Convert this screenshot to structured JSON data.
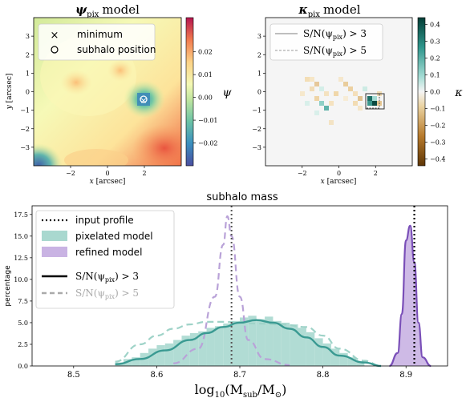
{
  "psi_panel": {
    "title": "ψ",
    "title_sub": "pix",
    "title_rest": "model",
    "xlabel_var": "x",
    "xlabel_unit": "[arcsec]",
    "ylabel_var": "y",
    "ylabel_unit": "[arcsec]",
    "xticks": [
      "−2",
      "0",
      "2"
    ],
    "yticks": [
      "3",
      "2",
      "1",
      "0",
      "−1",
      "−2",
      "−3"
    ],
    "legend": [
      {
        "marker": "×",
        "label": "minimum"
      },
      {
        "marker": "○",
        "label": "subhalo position"
      }
    ],
    "colorbar_label": "ψ",
    "colorbar_ticks": [
      "0.02",
      "0.01",
      "0.00",
      "−0.01",
      "−0.02"
    ]
  },
  "kappa_panel": {
    "title": "κ",
    "title_sub": "pix",
    "title_rest": "model",
    "xlabel_var": "x",
    "xlabel_unit": "[arcsec]",
    "yticks": [
      "3",
      "2",
      "1",
      "0",
      "−1",
      "−2",
      "−3"
    ],
    "xticks": [
      "−2",
      "0",
      "2"
    ],
    "legend": [
      {
        "style": "solid",
        "label": "S/N(ψ"
      },
      {
        "style": "dashed",
        "label": "S/N(ψ"
      }
    ],
    "legend_sub": "pix",
    "legend_gt": [
      ") > 3",
      ") > 5"
    ],
    "colorbar_label": "κ",
    "colorbar_ticks": [
      "0.4",
      "0.3",
      "0.2",
      "0.1",
      "0.0",
      "−0.1",
      "−0.2",
      "−0.3",
      "−0.4"
    ]
  },
  "colors": {
    "teal": "#3a9a92",
    "teal_fill": "#a9d8cf",
    "purple": "#7a4fb8",
    "purple_fill": "#c9b3e3",
    "purple_dash": "#b9a2d8",
    "teal_dash": "#9fd3c8"
  },
  "chart_data": {
    "type": "area",
    "title": "subhalo mass",
    "xlabel": "log10(Msub/M⊙)",
    "xlabel_display": "log",
    "xlabel_sub10": "10",
    "xlabel_body": "(M",
    "xlabel_subsub": "sub",
    "xlabel_mid": "/M",
    "xlabel_sun": "⊙",
    "xlabel_end": ")",
    "ylabel": "percentage",
    "xlim": [
      8.45,
      8.95
    ],
    "ylim": [
      0,
      18.5
    ],
    "xticks": [
      8.5,
      8.6,
      8.7,
      8.8,
      8.9
    ],
    "xtick_labels": [
      "8.5",
      "8.6",
      "8.7",
      "8.8",
      "8.9"
    ],
    "yticks": [
      0,
      2.5,
      5.0,
      7.5,
      10.0,
      12.5,
      15.0,
      17.5
    ],
    "ytick_labels": [
      "0.0",
      "2.5",
      "5.0",
      "7.5",
      "10.0",
      "12.5",
      "15.0",
      "17.5"
    ],
    "input_value": 8.91,
    "legend": [
      {
        "key": "input",
        "label": "input profile"
      },
      {
        "key": "pix",
        "label": "pixelated model"
      },
      {
        "key": "ref",
        "label": "refined model"
      },
      {
        "key": "sn3",
        "label": "S/N(ψ",
        "sub": "pix",
        "tail": ") > 3"
      },
      {
        "key": "sn5",
        "label": "S/N(ψ",
        "sub": "pix",
        "tail": ") > 5"
      }
    ],
    "series": [
      {
        "name": "pixelated model",
        "style": "hist+solid",
        "x": [
          8.55,
          8.58,
          8.61,
          8.64,
          8.66,
          8.68,
          8.7,
          8.72,
          8.74,
          8.76,
          8.78,
          8.8,
          8.82,
          8.85,
          8.87
        ],
        "values": [
          0.2,
          0.8,
          1.8,
          3.0,
          3.8,
          4.5,
          5.0,
          5.3,
          5.0,
          4.3,
          3.3,
          2.2,
          1.2,
          0.4,
          0.0
        ]
      },
      {
        "name": "pixelated model S/N>5",
        "style": "dashed",
        "x": [
          8.55,
          8.58,
          8.6,
          8.62,
          8.64,
          8.66,
          8.68,
          8.7,
          8.72,
          8.75,
          8.78,
          8.8,
          8.82,
          8.85,
          8.87
        ],
        "values": [
          0.5,
          2.5,
          3.5,
          4.3,
          4.8,
          5.1,
          5.1,
          5.0,
          4.9,
          4.8,
          4.5,
          3.5,
          2.0,
          0.6,
          0.0
        ]
      },
      {
        "name": "refined model",
        "style": "fill+solid",
        "x": [
          8.88,
          8.89,
          8.895,
          8.9,
          8.905,
          8.91,
          8.915,
          8.92,
          8.93
        ],
        "values": [
          0.0,
          1.5,
          6.0,
          14.5,
          16.2,
          12.0,
          5.0,
          1.0,
          0.0
        ]
      },
      {
        "name": "refined model S/N>5",
        "style": "dashed",
        "x": [
          8.62,
          8.65,
          8.67,
          8.68,
          8.685,
          8.69,
          8.7,
          8.71,
          8.73,
          8.76
        ],
        "values": [
          0.3,
          2.0,
          8.0,
          14.0,
          17.3,
          15.0,
          8.0,
          3.0,
          0.8,
          0.1
        ]
      }
    ],
    "hist_bins": {
      "start": 8.55,
      "width": 0.01,
      "values": [
        0.4,
        0.8,
        1.0,
        1.5,
        2.0,
        2.4,
        2.6,
        3.0,
        3.5,
        3.8,
        4.0,
        4.4,
        4.6,
        4.9,
        5.2,
        5.6,
        5.8,
        5.4,
        5.7,
        5.2,
        5.0,
        4.8,
        4.4,
        3.9,
        3.2,
        2.6,
        2.0,
        1.5,
        1.0,
        0.5
      ]
    },
    "grid": false,
    "legend_position": "top-left"
  }
}
